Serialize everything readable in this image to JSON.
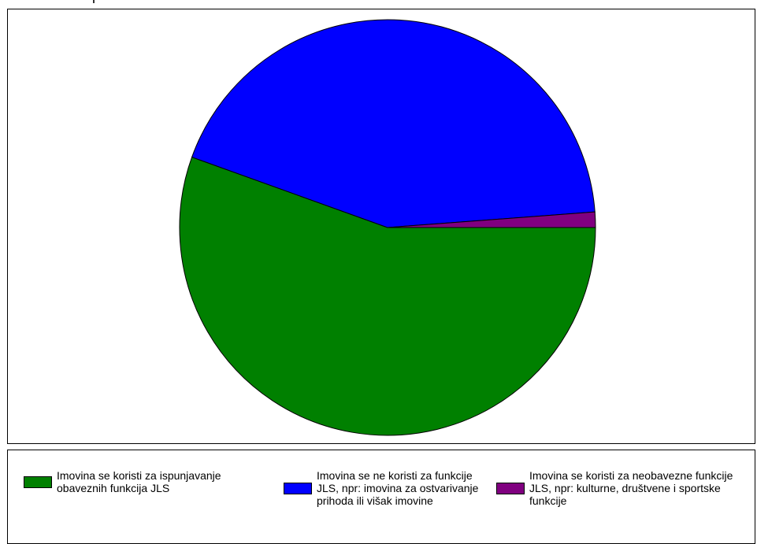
{
  "chart_data": {
    "type": "pie",
    "slices": [
      {
        "label": "Imovina se koristi za ispunjavanje obaveznih funkcija JLS",
        "value": 55.5,
        "color": "#008000"
      },
      {
        "label": "Imovina se ne koristi za funkcije JLS, npr: imovina za ostvarivanje prihoda ili višak imovine",
        "value": 43.3,
        "color": "#0000ff"
      },
      {
        "label": "Imovina se koristi za neobavezne funkcije JLS, npr: kulturne, društvene i sportske funkcije",
        "value": 1.2,
        "color": "#800080"
      }
    ],
    "legend_placement": "bottom"
  }
}
